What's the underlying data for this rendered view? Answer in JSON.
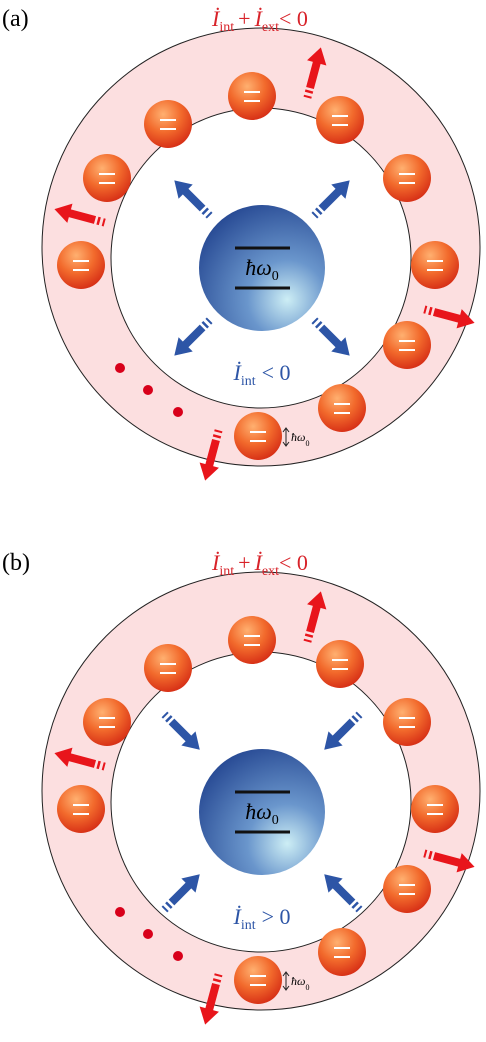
{
  "panels": [
    {
      "label": "(a)",
      "external_formula": {
        "symbol_1": "İ",
        "subscript_1": "int",
        "plus": "+",
        "symbol_2": "İ",
        "subscript_2": "ext",
        "relation": "< 0"
      },
      "internal_formula": {
        "symbol": "İ",
        "subscript": "int",
        "relation": "< 0"
      },
      "center_level": {
        "symbol": "ħω",
        "subscript": "0"
      },
      "ring_level": {
        "symbol": "ħω",
        "subscript": "0"
      }
    },
    {
      "label": "(b)",
      "external_formula": {
        "symbol_1": "İ",
        "subscript_1": "int",
        "plus": "+",
        "symbol_2": "İ",
        "subscript_2": "ext",
        "relation": "< 0"
      },
      "internal_formula": {
        "symbol": "İ",
        "subscript": "int",
        "relation": "> 0"
      },
      "center_level": {
        "symbol": "ħω",
        "subscript": "0"
      },
      "ring_level": {
        "symbol": "ħω",
        "subscript": "0"
      }
    }
  ]
}
